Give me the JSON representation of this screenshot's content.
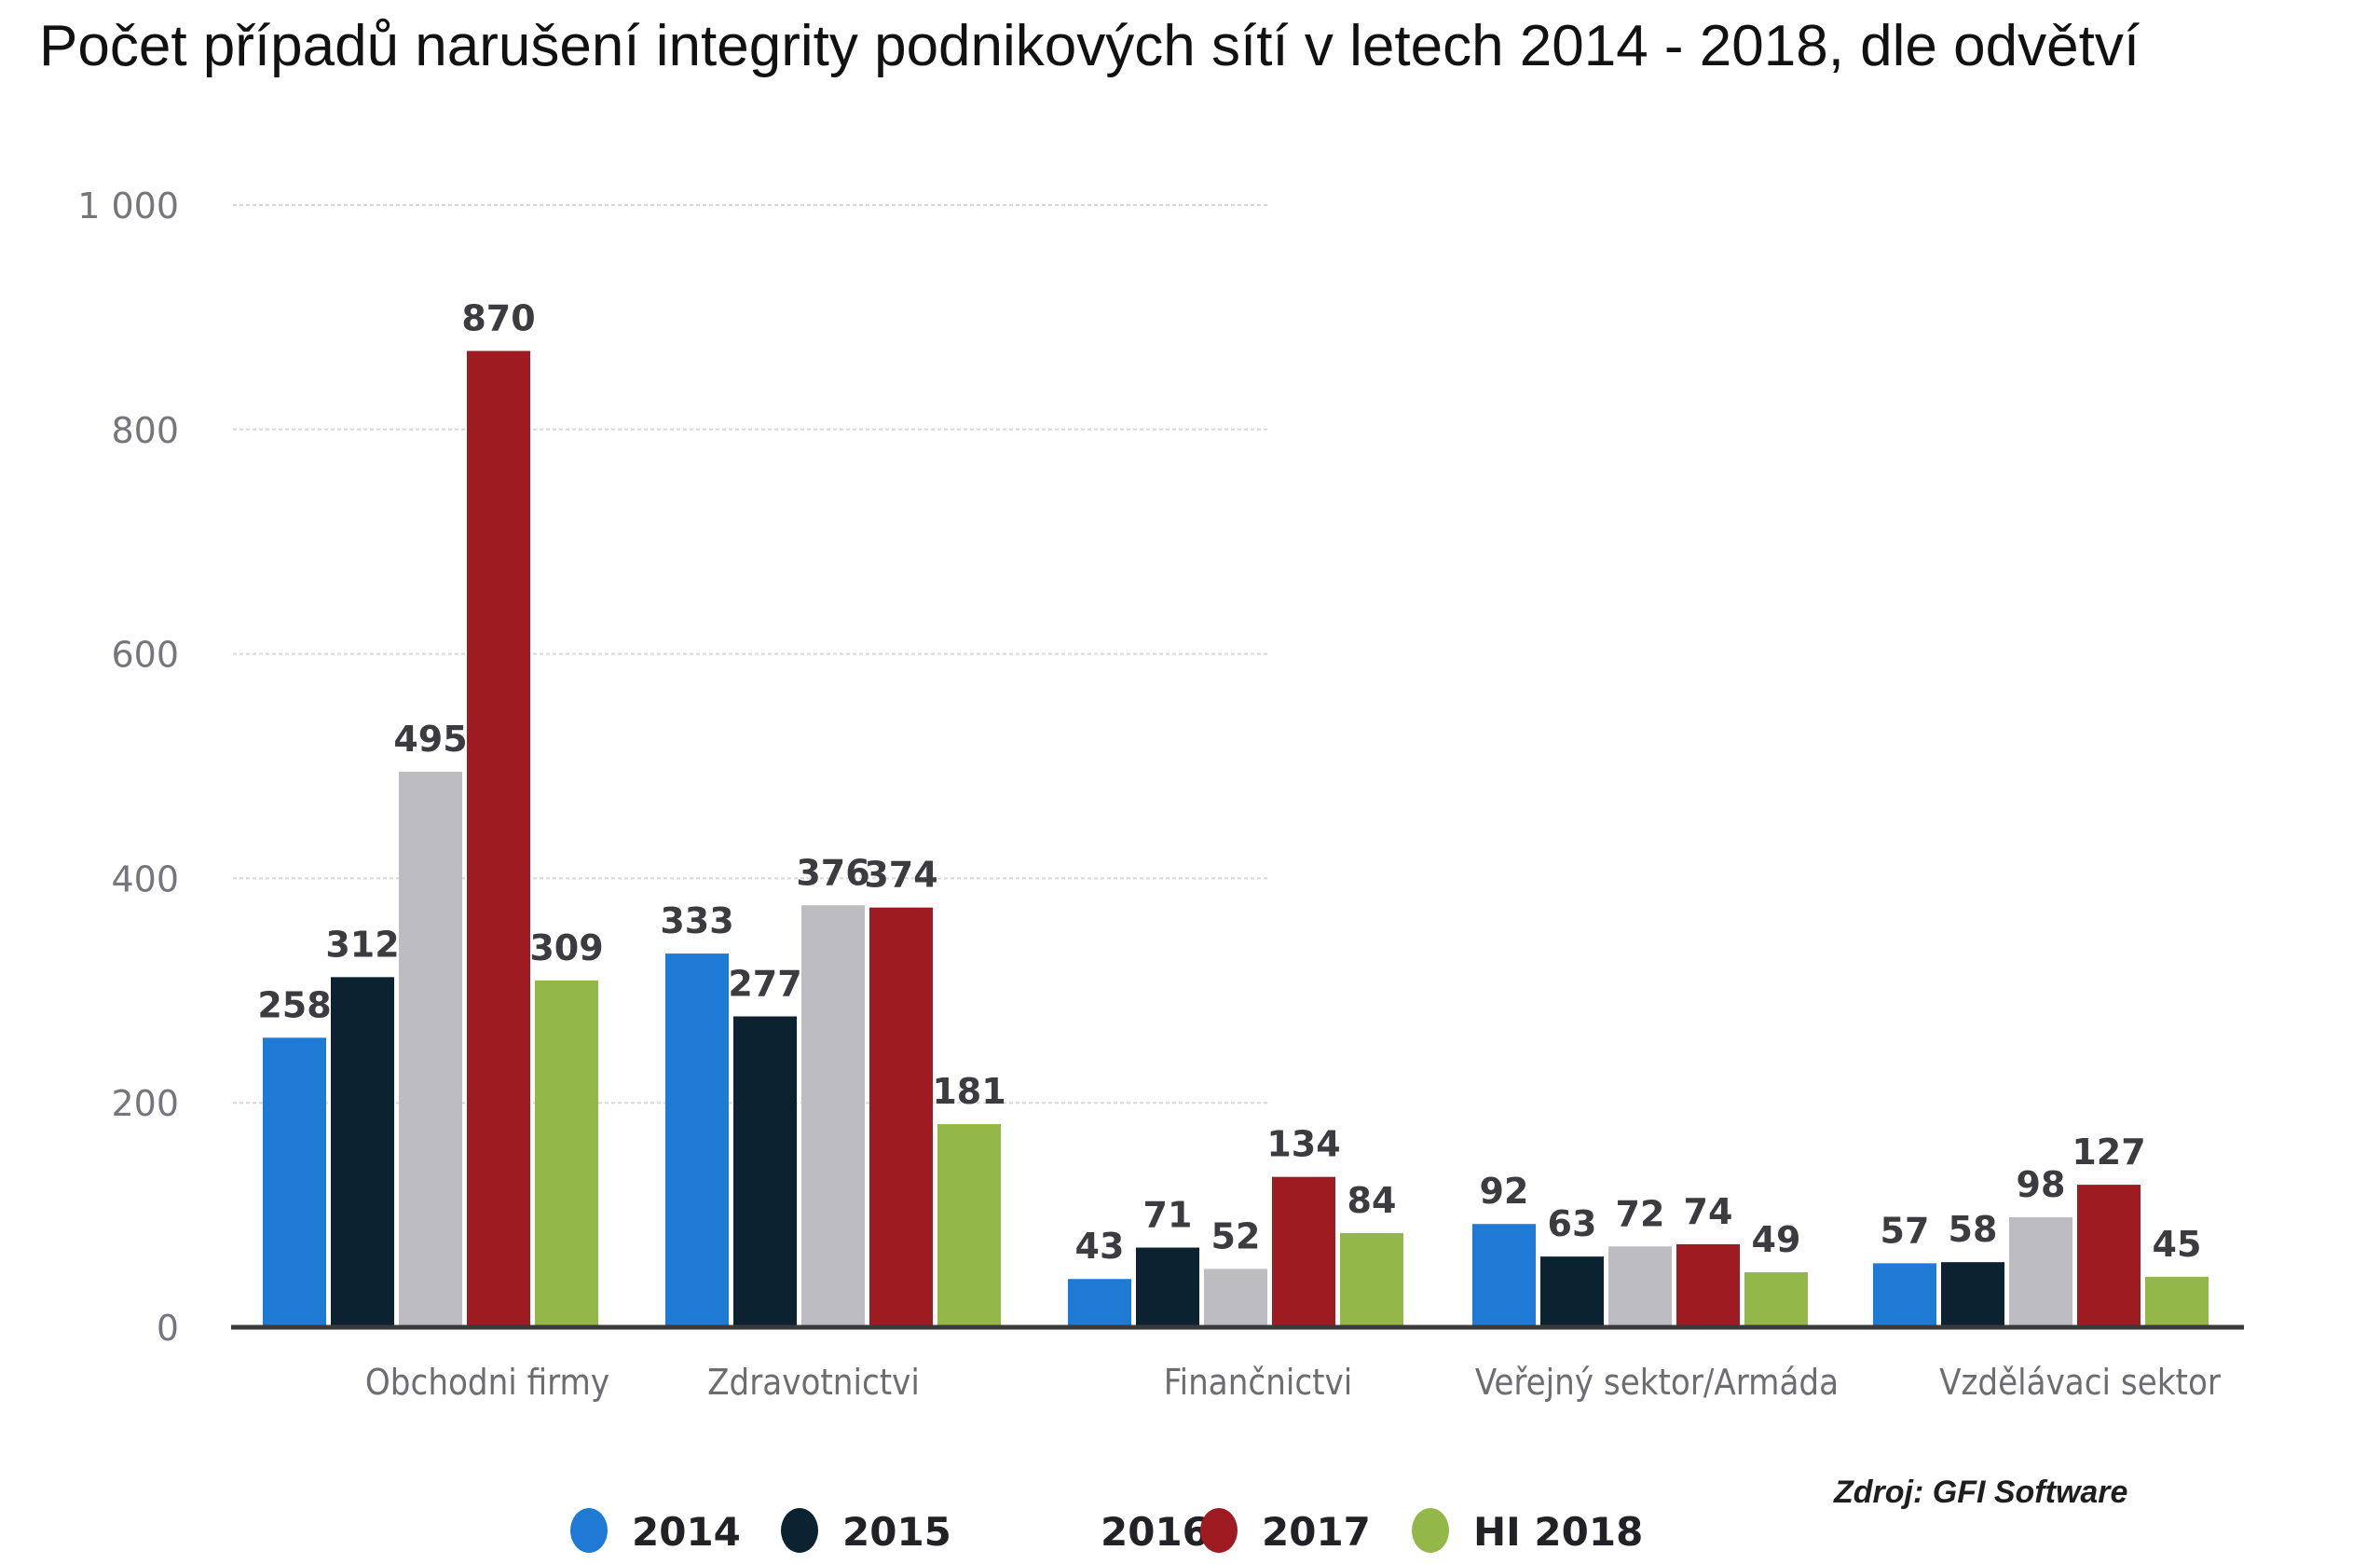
{
  "chart_data": {
    "type": "bar",
    "title": "Počet případů narušení integrity podnikových sítí v letech 2014 - 2018, dle odvětví",
    "xlabel": "",
    "ylabel": "",
    "ylim": [
      0,
      1000
    ],
    "yticks": [
      0,
      200,
      400,
      600,
      800,
      1000
    ],
    "ytick_labels": [
      "0",
      "200",
      "400",
      "600",
      "800",
      "1 000"
    ],
    "grid": true,
    "legend_position": "bottom",
    "categories": [
      "Obchodni firmy",
      "Zdravotnictvi",
      "Finančnictvi",
      "Veřejný sektor/Armáda",
      "Vzdělávaci sektor"
    ],
    "series": [
      {
        "name": "2014",
        "color": "#1f7ad6",
        "values": [
          258,
          333,
          43,
          92,
          57
        ]
      },
      {
        "name": "2015",
        "color": "#0b2230",
        "values": [
          312,
          277,
          71,
          63,
          58
        ]
      },
      {
        "name": "2016",
        "color": "#bdbcc0",
        "values": [
          495,
          376,
          52,
          72,
          98
        ]
      },
      {
        "name": "2017",
        "color": "#9e1b22",
        "values": [
          870,
          374,
          134,
          74,
          127
        ]
      },
      {
        "name": "H1 2018",
        "color": "#93b748",
        "values": [
          309,
          181,
          84,
          49,
          45
        ]
      }
    ],
    "source": "Zdroj: GFI Software"
  },
  "legend": {
    "items": [
      {
        "label": "2014",
        "color": "#1f7ad6",
        "show_marker": true
      },
      {
        "label": "2015",
        "color": "#0b2230",
        "show_marker": true
      },
      {
        "label": "2016",
        "color": "#bdbcc0",
        "show_marker": false
      },
      {
        "label": "2017",
        "color": "#9e1b22",
        "show_marker": true
      },
      {
        "label": "HI 2018",
        "color": "#93b748",
        "show_marker": true
      }
    ]
  }
}
